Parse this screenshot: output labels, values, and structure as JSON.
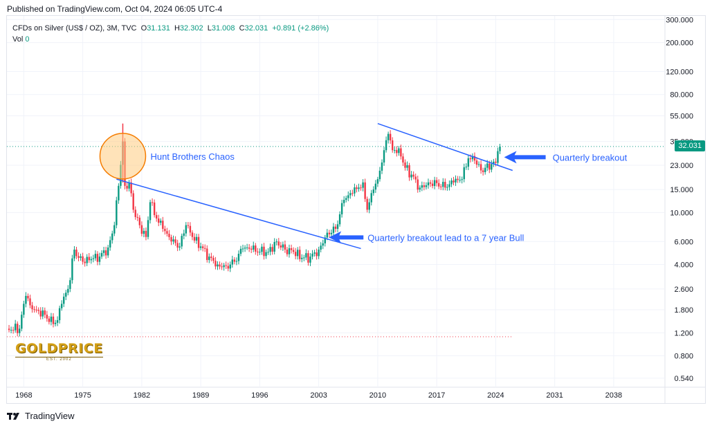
{
  "header": {
    "published": "Published on TradingView.com, Oct 04, 2024 06:05 UTC-4"
  },
  "legend": {
    "symbol": "CFDs on Silver (US$ / OZ), 3M, TVC",
    "o_label": "O",
    "o": "31.131",
    "h_label": "H",
    "h": "32.302",
    "l_label": "L",
    "l": "31.008",
    "c_label": "C",
    "c": "32.031",
    "change": "+0.891 (+2.86%)",
    "vol_label": "Vol",
    "vol": "0"
  },
  "last_price": "32.031",
  "footer": {
    "brand": "TradingView"
  },
  "logo": {
    "main": "GOLDPRICE",
    "sub": "EST. 2002"
  },
  "colors": {
    "up": "#089981",
    "down": "#f23645",
    "trend": "#2962ff",
    "annotation": "#2962ff",
    "circle_fill": "#ffcc80",
    "circle_stroke": "#f57c00"
  },
  "chart_data": {
    "type": "candlestick",
    "scale": "log",
    "x_ticks": [
      "1968",
      "1975",
      "1982",
      "1989",
      "1996",
      "2003",
      "2010",
      "2017",
      "2024",
      "2031",
      "2038"
    ],
    "y_ticks": [
      "300.000",
      "200.000",
      "120.000",
      "80.000",
      "55.000",
      "35.000",
      "23.000",
      "15.000",
      "10.000",
      "6.000",
      "4.000",
      "2.600",
      "1.800",
      "1.200",
      "0.800",
      "0.540"
    ],
    "xlim": [
      1966,
      2044
    ],
    "ylim": [
      0.46,
      320
    ],
    "series": [
      {
        "year": 1966.0,
        "close": 1.29
      },
      {
        "year": 1967.5,
        "close": 1.29
      },
      {
        "year": 1968.0,
        "close": 2.0
      },
      {
        "year": 1968.25,
        "close": 2.3
      },
      {
        "year": 1968.75,
        "close": 1.95
      },
      {
        "year": 1969.5,
        "close": 1.8
      },
      {
        "year": 1970.5,
        "close": 1.65
      },
      {
        "year": 1971.5,
        "close": 1.4
      },
      {
        "year": 1972.0,
        "close": 1.5
      },
      {
        "year": 1972.5,
        "close": 2.0
      },
      {
        "year": 1973.25,
        "close": 2.6
      },
      {
        "year": 1974.0,
        "close": 5.2
      },
      {
        "year": 1974.5,
        "close": 4.5
      },
      {
        "year": 1975.0,
        "close": 4.2
      },
      {
        "year": 1976.0,
        "close": 4.4
      },
      {
        "year": 1977.0,
        "close": 4.6
      },
      {
        "year": 1978.0,
        "close": 5.4
      },
      {
        "year": 1978.75,
        "close": 8.0
      },
      {
        "year": 1979.25,
        "close": 16.0
      },
      {
        "year": 1979.75,
        "close": 35.0
      },
      {
        "year": 1980.0,
        "close": 16.0
      },
      {
        "year": 1980.5,
        "close": 17.0
      },
      {
        "year": 1981.0,
        "close": 10.5
      },
      {
        "year": 1981.75,
        "close": 8.0
      },
      {
        "year": 1982.5,
        "close": 6.5
      },
      {
        "year": 1983.0,
        "close": 12.0
      },
      {
        "year": 1983.75,
        "close": 9.0
      },
      {
        "year": 1984.5,
        "close": 7.5
      },
      {
        "year": 1985.5,
        "close": 6.0
      },
      {
        "year": 1986.5,
        "close": 5.5
      },
      {
        "year": 1987.25,
        "close": 8.0
      },
      {
        "year": 1988.0,
        "close": 6.5
      },
      {
        "year": 1989.0,
        "close": 5.5
      },
      {
        "year": 1990.0,
        "close": 4.6
      },
      {
        "year": 1991.0,
        "close": 4.0
      },
      {
        "year": 1992.0,
        "close": 3.9
      },
      {
        "year": 1993.0,
        "close": 4.2
      },
      {
        "year": 1994.0,
        "close": 5.3
      },
      {
        "year": 1995.0,
        "close": 5.2
      },
      {
        "year": 1996.0,
        "close": 5.0
      },
      {
        "year": 1997.0,
        "close": 5.0
      },
      {
        "year": 1998.0,
        "close": 6.0
      },
      {
        "year": 1999.0,
        "close": 5.2
      },
      {
        "year": 2000.0,
        "close": 5.0
      },
      {
        "year": 2001.0,
        "close": 4.5
      },
      {
        "year": 2002.0,
        "close": 4.6
      },
      {
        "year": 2003.0,
        "close": 5.2
      },
      {
        "year": 2004.0,
        "close": 7.0
      },
      {
        "year": 2005.0,
        "close": 7.5
      },
      {
        "year": 2006.0,
        "close": 12.5
      },
      {
        "year": 2007.0,
        "close": 14.0
      },
      {
        "year": 2008.25,
        "close": 17.0
      },
      {
        "year": 2008.75,
        "close": 10.5
      },
      {
        "year": 2009.5,
        "close": 15.0
      },
      {
        "year": 2010.0,
        "close": 18.0
      },
      {
        "year": 2010.75,
        "close": 30.0
      },
      {
        "year": 2011.25,
        "close": 40.0
      },
      {
        "year": 2011.75,
        "close": 30.0
      },
      {
        "year": 2012.5,
        "close": 31.0
      },
      {
        "year": 2013.25,
        "close": 22.0
      },
      {
        "year": 2014.0,
        "close": 19.5
      },
      {
        "year": 2015.0,
        "close": 15.5
      },
      {
        "year": 2016.0,
        "close": 17.0
      },
      {
        "year": 2017.0,
        "close": 16.8
      },
      {
        "year": 2018.0,
        "close": 15.5
      },
      {
        "year": 2019.0,
        "close": 17.0
      },
      {
        "year": 2020.0,
        "close": 18.0
      },
      {
        "year": 2020.75,
        "close": 26.0
      },
      {
        "year": 2021.5,
        "close": 25.0
      },
      {
        "year": 2022.25,
        "close": 21.0
      },
      {
        "year": 2022.75,
        "close": 22.0
      },
      {
        "year": 2023.5,
        "close": 23.5
      },
      {
        "year": 2024.0,
        "close": 24.0
      },
      {
        "year": 2024.25,
        "close": 29.5
      },
      {
        "year": 2024.5,
        "close": 32.0
      }
    ],
    "trendlines": [
      {
        "from": [
          1979.0,
          18.0
        ],
        "to": [
          2008.0,
          5.3
        ]
      },
      {
        "from": [
          2010.0,
          48.0
        ],
        "to": [
          2026.0,
          21.0
        ]
      }
    ],
    "annotations": [
      {
        "text": "Hunt Brothers Chaos"
      },
      {
        "text": "Quarterly breakout lead to a 7 year Bull"
      },
      {
        "text": "Quarterly breakout"
      }
    ]
  }
}
